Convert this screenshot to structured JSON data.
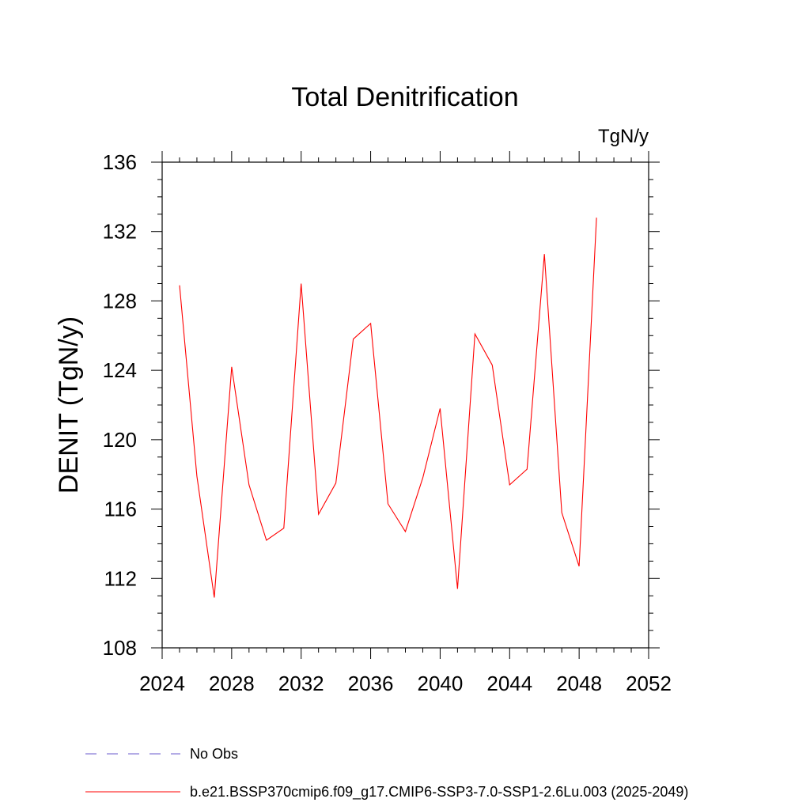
{
  "chart_data": {
    "type": "line",
    "title": "Total Denitrification",
    "units_label": "TgN/y",
    "ylabel": "DENIT  (TgN/y)",
    "xlabel": "",
    "xlim": [
      2024,
      2052
    ],
    "ylim": [
      108,
      136
    ],
    "x_ticks": [
      2024,
      2028,
      2032,
      2036,
      2040,
      2044,
      2048,
      2052
    ],
    "y_ticks": [
      108,
      112,
      116,
      120,
      124,
      128,
      132,
      136
    ],
    "series": [
      {
        "name": "b.e21.BSSP370cmip6.f09_g17.CMIP6-SSP3-7.0-SSP1-2.6Lu.003 (2025-2049)",
        "color": "#ff0000",
        "style": "solid",
        "x": [
          2025,
          2026,
          2027,
          2028,
          2029,
          2030,
          2031,
          2032,
          2033,
          2034,
          2035,
          2036,
          2037,
          2038,
          2039,
          2040,
          2041,
          2042,
          2043,
          2044,
          2045,
          2046,
          2047,
          2048,
          2049
        ],
        "y": [
          128.9,
          117.9,
          110.9,
          124.2,
          117.4,
          114.2,
          114.9,
          129.0,
          115.7,
          117.5,
          125.8,
          126.7,
          116.3,
          114.7,
          117.8,
          121.8,
          111.4,
          126.1,
          124.3,
          117.4,
          118.3,
          130.7,
          115.8,
          112.7,
          132.8
        ]
      }
    ],
    "legend": [
      {
        "label": "No Obs",
        "color": "#6a5acd",
        "style": "dashed"
      },
      {
        "label": "b.e21.BSSP370cmip6.f09_g17.CMIP6-SSP3-7.0-SSP1-2.6Lu.003 (2025-2049)",
        "color": "#ff0000",
        "style": "solid"
      }
    ],
    "legend_position": "bottom-left",
    "grid": false
  }
}
